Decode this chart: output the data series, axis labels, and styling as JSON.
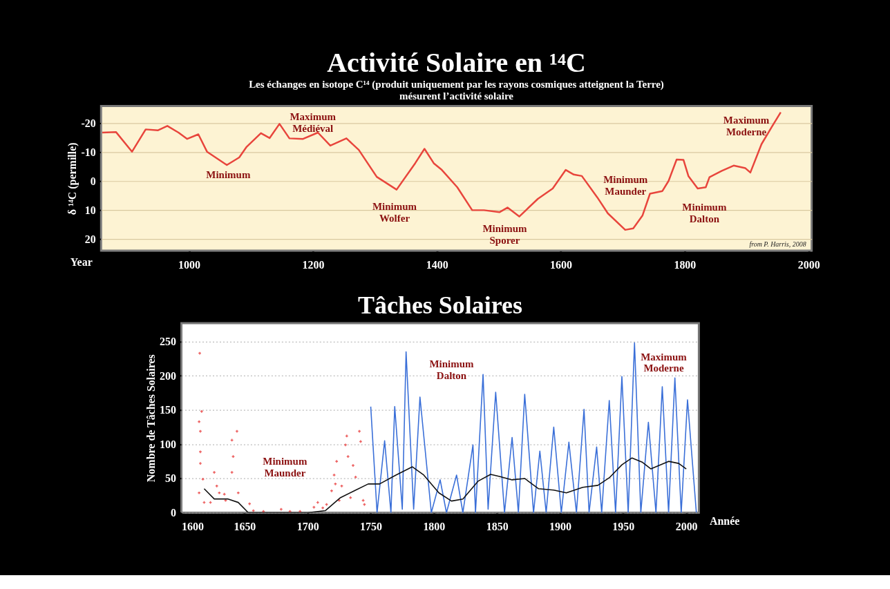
{
  "chart_data": [
    {
      "type": "line",
      "title": "Activité Solaire en ¹⁴C",
      "subtitle": "Les échanges en isotope C¹⁴ (produit uniquement par les rayons cosmiques atteignent la Terre)\nmésurent  l’activité solaire",
      "xlabel": "Year",
      "ylabel": "δ ¹⁴C (permille)",
      "x": [
        860,
        882,
        908,
        930,
        950,
        965,
        983,
        997,
        1015,
        1029,
        1061,
        1081,
        1093,
        1116,
        1130,
        1146,
        1162,
        1184,
        1208,
        1228,
        1254,
        1274,
        1303,
        1335,
        1365,
        1380,
        1395,
        1408,
        1433,
        1457,
        1476,
        1501,
        1514,
        1533,
        1563,
        1587,
        1608,
        1621,
        1634,
        1659,
        1676,
        1704,
        1717,
        1732,
        1744,
        1764,
        1774,
        1787,
        1798,
        1806,
        1821,
        1834,
        1840,
        1860,
        1879,
        1898,
        1906,
        1924,
        1941,
        1955
      ],
      "values": [
        -16.8,
        -17,
        -10.2,
        -17.9,
        -17.6,
        -19.1,
        -16.8,
        -14.6,
        -16.2,
        -10.2,
        -5.6,
        -8.2,
        -11.9,
        -16.6,
        -14.9,
        -19.8,
        -14.8,
        -14.6,
        -16.8,
        -12.3,
        -14.8,
        -10.8,
        -1.5,
        2.9,
        -6.2,
        -11.2,
        -6.2,
        -3.9,
        2.1,
        10,
        10,
        10.7,
        9.1,
        12.2,
        6.1,
        2.5,
        -3.9,
        -2.3,
        -1.8,
        5.6,
        11.1,
        16.8,
        16.3,
        11.8,
        4.3,
        3.4,
        -0.1,
        -7.5,
        -7.4,
        -1.8,
        2.5,
        2.1,
        -1.4,
        -3.6,
        -5.4,
        -4.5,
        -3,
        -12.8,
        -18.9,
        -23.8
      ],
      "color": "#e8453c",
      "line_style": "solid",
      "xlim": [
        858,
        2005
      ],
      "xticks": [
        1000,
        1200,
        1400,
        1600,
        1800,
        2000
      ],
      "ylim": [
        24,
        -26
      ],
      "yticks": [
        -20,
        -10,
        0,
        10,
        20
      ],
      "grid": "y",
      "annotations": [
        "Maximum\nMédiéval",
        "Minimum",
        "Minimum\nWolfer",
        "Minimum\nSporer",
        "Minimum\nMaunder",
        "Minimum\nDalton",
        "Maximum\nModerne",
        "from P. Harris, 2008"
      ]
    },
    {
      "type": "line",
      "title": "Tâches Solaires",
      "xlabel": "Année",
      "ylabel": "Nombre de Tâches Solaires",
      "series": [
        {
          "type": "scatter",
          "color": "#e83a3a",
          "marker": "cross",
          "x": [
            1614.5,
            1616,
            1614,
            1615,
            1615,
            1615,
            1617,
            1614,
            1618,
            1623,
            1626,
            1628,
            1630,
            1634,
            1635,
            1640,
            1641,
            1640,
            1644,
            1645,
            1646,
            1654,
            1657,
            1665,
            1679,
            1686,
            1694,
            1705,
            1708,
            1712,
            1715,
            1719,
            1721,
            1722,
            1723,
            1725,
            1727,
            1730,
            1731,
            1732,
            1734,
            1736,
            1738,
            1741,
            1742,
            1744,
            1745
          ],
          "values": [
            233,
            148,
            133,
            119,
            89,
            72,
            49,
            29,
            15,
            15,
            59,
            39,
            29,
            27,
            18,
            106,
            82,
            59,
            119,
            29,
            null,
            13,
            3,
            2,
            5,
            2,
            2,
            8,
            15,
            7,
            12,
            32,
            55,
            42,
            75,
            18,
            39,
            99,
            112,
            82,
            22,
            69,
            52,
            119,
            104,
            18,
            12
          ]
        },
        {
          "type": "line",
          "color": "#3a6fd8",
          "line_style": "solid",
          "x": [
            1750,
            1755,
            1761,
            1766,
            1769,
            1775,
            1778,
            1784,
            1789,
            1798,
            1805,
            1810,
            1818,
            1823,
            1831,
            1833,
            1839,
            1843,
            1849,
            1856,
            1862,
            1867,
            1872,
            1879,
            1884,
            1889,
            1895,
            1901,
            1907,
            1913,
            1919,
            1923,
            1929,
            1933,
            1939,
            1944,
            1949,
            1954,
            1959,
            1964,
            1970,
            1976,
            1981,
            1986,
            1991,
            1996,
            2001,
            2008
          ],
          "values": [
            155,
            0,
            105,
            0,
            155,
            5,
            235,
            5,
            169,
            0,
            48,
            0,
            55,
            0,
            99,
            0,
            202,
            5,
            176,
            0,
            110,
            0,
            173,
            0,
            90,
            0,
            125,
            0,
            103,
            0,
            151,
            0,
            96,
            0,
            164,
            0,
            199,
            0,
            248,
            0,
            132,
            0,
            184,
            0,
            197,
            0,
            165,
            0
          ]
        },
        {
          "type": "line",
          "color": "#111111",
          "line_style": "solid",
          "x": [
            1618,
            1626,
            1637,
            1645,
            1653,
            1680,
            1700,
            1714,
            1726,
            1737,
            1748,
            1757,
            1770,
            1783,
            1792,
            1804,
            1814,
            1823,
            1835,
            1845,
            1852,
            1862,
            1872,
            1883,
            1895,
            1905,
            1918,
            1930,
            1939,
            1949,
            1957,
            1965,
            1972,
            1986,
            1994,
            2000
          ],
          "values": [
            35,
            20,
            20,
            15,
            0,
            0,
            0,
            3,
            22,
            32,
            42,
            42,
            55,
            67,
            55,
            29,
            17,
            20,
            46,
            56,
            53,
            48,
            50,
            35,
            33,
            29,
            37,
            40,
            51,
            70,
            80,
            74,
            64,
            75,
            72,
            64
          ]
        }
      ],
      "xlim": [
        1600,
        2010
      ],
      "xticks": [
        1600,
        1650,
        1700,
        1750,
        1800,
        1850,
        1900,
        1950,
        2000
      ],
      "ylim": [
        0,
        277
      ],
      "yticks": [
        0,
        50,
        100,
        150,
        200,
        250
      ],
      "grid": "y",
      "annotations": [
        "Minimum\nMaunder",
        "Minimum\nDalton",
        "Maximum\nModerne"
      ]
    }
  ]
}
